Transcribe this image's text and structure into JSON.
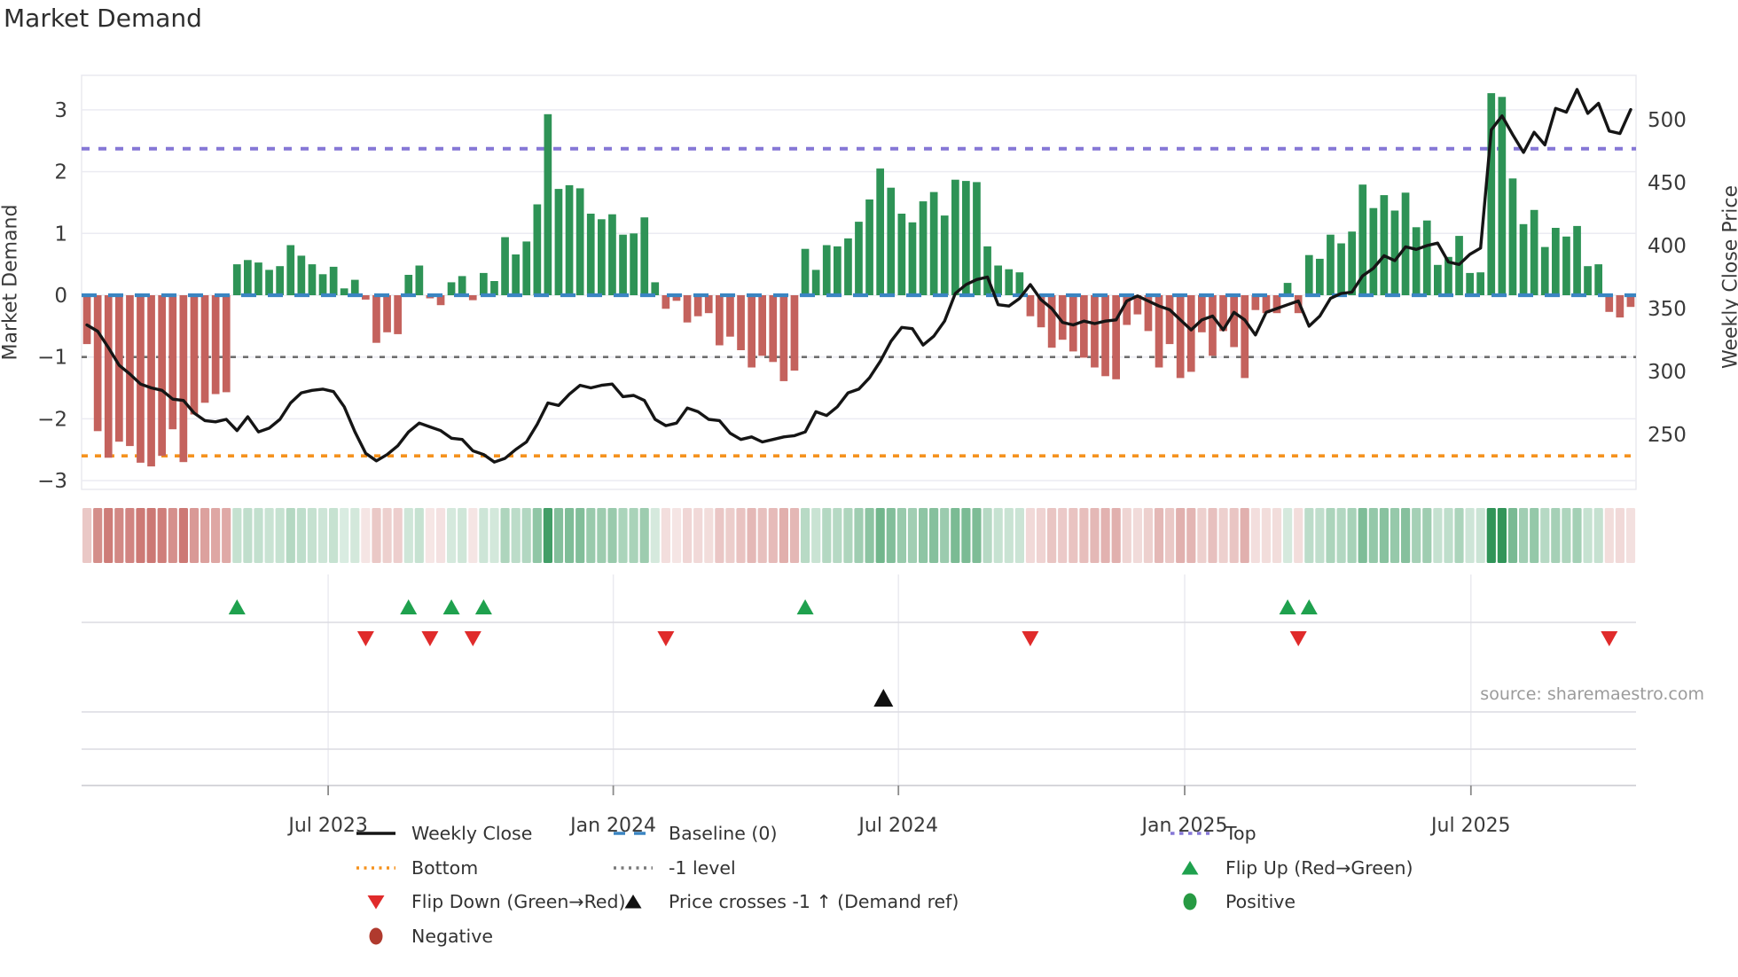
{
  "title": "Market Demand",
  "source_note": "source: sharemaestro.com",
  "axes": {
    "left_label": "Market Demand",
    "right_label": "Weekly Close Price",
    "left_ticks": [
      "3",
      "2",
      "1",
      "0",
      "−1",
      "−2",
      "−3"
    ],
    "left_tick_values": [
      3,
      2,
      1,
      0,
      -1,
      -2,
      -3
    ],
    "right_ticks": [
      500,
      450,
      400,
      350,
      300,
      250
    ],
    "x_ticks": [
      {
        "label": "Jul 2023",
        "week": 22.5
      },
      {
        "label": "Jan 2024",
        "week": 49.1
      },
      {
        "label": "Jul 2024",
        "week": 75.7
      },
      {
        "label": "Jan 2025",
        "week": 102.4
      },
      {
        "label": "Jul 2025",
        "week": 129.1
      }
    ]
  },
  "levels": {
    "baseline": {
      "label": "Baseline (0)",
      "value": 0,
      "color": "#3b85c2",
      "style": "dashed"
    },
    "top": {
      "label": "Top",
      "value": 2.37,
      "color": "#8577d6",
      "style": "dotted"
    },
    "bottom": {
      "label": "Bottom",
      "value": -2.6,
      "color": "#f5921e",
      "style": "dotted"
    },
    "minus_one": {
      "label": "-1 level",
      "value": -1,
      "color": "#6f6f6f",
      "style": "dotted"
    }
  },
  "chart_data": {
    "type": "combo",
    "x_unit": "weekly",
    "n_points": 145,
    "grid": "horizontal",
    "ylim_left": [
      -3.2,
      3.6
    ],
    "ylim_right": [
      210,
      535
    ],
    "series": [
      {
        "name": "Market Demand",
        "type": "bar",
        "axis": "left",
        "positive_color": "#2e9356",
        "negative_color": "#c4625d",
        "values": [
          -0.79,
          -2.2,
          -2.63,
          -2.37,
          -2.44,
          -2.71,
          -2.77,
          -2.6,
          -2.17,
          -2.7,
          -1.93,
          -1.74,
          -1.6,
          -1.57,
          0.5,
          0.57,
          0.53,
          0.41,
          0.47,
          0.81,
          0.64,
          0.5,
          0.34,
          0.46,
          0.11,
          0.25,
          -0.07,
          -0.77,
          -0.6,
          -0.63,
          0.33,
          0.48,
          -0.05,
          -0.16,
          0.21,
          0.31,
          -0.08,
          0.36,
          0.23,
          0.94,
          0.66,
          0.87,
          1.47,
          2.93,
          1.72,
          1.78,
          1.73,
          1.32,
          1.23,
          1.31,
          0.98,
          1.0,
          1.26,
          0.21,
          -0.22,
          -0.09,
          -0.44,
          -0.34,
          -0.29,
          -0.81,
          -0.67,
          -0.89,
          -1.17,
          -0.98,
          -1.08,
          -1.39,
          -1.22,
          0.75,
          0.41,
          0.81,
          0.79,
          0.92,
          1.19,
          1.55,
          2.05,
          1.74,
          1.32,
          1.18,
          1.52,
          1.67,
          1.29,
          1.87,
          1.85,
          1.83,
          0.79,
          0.48,
          0.42,
          0.37,
          -0.34,
          -0.52,
          -0.85,
          -0.72,
          -0.91,
          -1.01,
          -1.17,
          -1.31,
          -1.36,
          -0.48,
          -0.31,
          -0.58,
          -1.17,
          -0.79,
          -1.34,
          -1.24,
          -0.6,
          -0.98,
          -0.58,
          -0.84,
          -1.34,
          -0.24,
          -0.29,
          -0.29,
          0.2,
          -0.29,
          0.65,
          0.59,
          0.98,
          0.84,
          1.03,
          1.79,
          1.41,
          1.62,
          1.37,
          1.66,
          1.1,
          1.21,
          0.49,
          0.62,
          0.96,
          0.36,
          0.37,
          3.27,
          3.21,
          1.89,
          1.15,
          1.38,
          0.78,
          1.09,
          0.95,
          1.12,
          0.47,
          0.5,
          -0.27,
          -0.36,
          -0.19
        ]
      },
      {
        "name": "Weekly Close",
        "type": "line",
        "axis": "right",
        "color": "#151515",
        "values": [
          337,
          332,
          319,
          305,
          298,
          290,
          287,
          285,
          278,
          277,
          267,
          261,
          260,
          262,
          253,
          264,
          252,
          255,
          262,
          275,
          283,
          285,
          286,
          284,
          272,
          252,
          235,
          229,
          234,
          241,
          252,
          259,
          256,
          253,
          247,
          246,
          237,
          234,
          228,
          231,
          238,
          244,
          258,
          275,
          273,
          282,
          289,
          287,
          289,
          290,
          280,
          281,
          277,
          262,
          257,
          259,
          271,
          268,
          262,
          261,
          251,
          246,
          248,
          244,
          246,
          248,
          249,
          252,
          268,
          265,
          272,
          283,
          286,
          295,
          308,
          324,
          335,
          334,
          321,
          328,
          340,
          362,
          369,
          373,
          375,
          353,
          352,
          358,
          369,
          357,
          350,
          339,
          337,
          340,
          338,
          340,
          341,
          356,
          360,
          356,
          352,
          349,
          341,
          333,
          341,
          344,
          333,
          347,
          341,
          329,
          347,
          350,
          353,
          356,
          336,
          344,
          358,
          362,
          363,
          376,
          382,
          392,
          388,
          399,
          397,
          400,
          402,
          387,
          385,
          393,
          398,
          492,
          503,
          488,
          474,
          490,
          480,
          509,
          506,
          524,
          505,
          513,
          491,
          489,
          508
        ]
      }
    ],
    "markers": {
      "flip_up": {
        "label": "Flip Up (Red→Green)",
        "color": "#1fa14e",
        "weeks": [
          14,
          30,
          34,
          37,
          67,
          112,
          114
        ]
      },
      "flip_down": {
        "label": "Flip Down (Green→Red)",
        "color": "#e02b2b",
        "weeks": [
          26,
          32,
          36,
          54,
          88,
          113,
          142
        ]
      },
      "price_cross": {
        "label": "Price crosses -1 ↑ (Demand ref)",
        "color": "#111111",
        "weeks": [
          74.3
        ]
      },
      "positive": {
        "label": "Positive",
        "color": "#279a43"
      },
      "negative": {
        "label": "Negative",
        "color": "#b03a2e"
      }
    },
    "heatmap_strip": {
      "source": "demand_values",
      "max_abs": 3.3,
      "positive_color": "#2e9356",
      "negative_color": "#c4625d"
    }
  },
  "legend": {
    "columns": [
      [
        {
          "symbol": "line",
          "color": "#151515",
          "dash": "",
          "label": "Weekly Close"
        },
        {
          "symbol": "line",
          "color": "#f5921e",
          "dash": "3 5.5",
          "label": "Bottom"
        },
        {
          "symbol": "triangle-down",
          "color": "#e02b2b",
          "label": "Flip Down (Green→Red)"
        },
        {
          "symbol": "circle",
          "color": "#b03a2e",
          "label": "Negative"
        }
      ],
      [
        {
          "symbol": "line",
          "color": "#3b85c2",
          "dash": "13 10",
          "label": "Baseline (0)"
        },
        {
          "symbol": "line",
          "color": "#7a7a7a",
          "dash": "3 5.5",
          "label": "-1 level"
        },
        {
          "symbol": "triangle-up",
          "color": "#111111",
          "label": "Price crosses -1 ↑ (Demand ref)"
        }
      ],
      [
        {
          "symbol": "line",
          "color": "#8577d6",
          "dash": "4.5 5.5",
          "label": "Top"
        },
        {
          "symbol": "triangle-up",
          "color": "#1fa14e",
          "label": "Flip Up (Red→Green)"
        },
        {
          "symbol": "circle",
          "color": "#279a43",
          "label": "Positive"
        }
      ]
    ]
  }
}
